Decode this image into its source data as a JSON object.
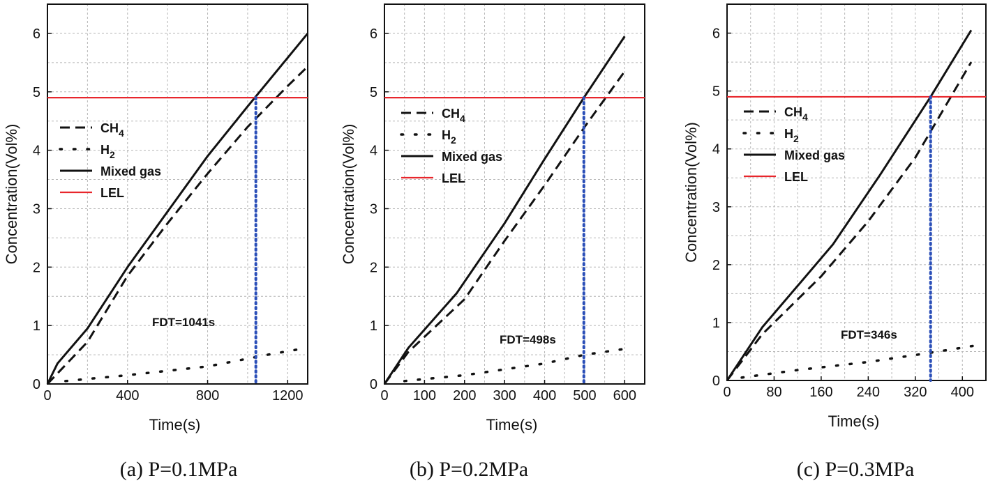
{
  "chart_data": [
    {
      "type": "line",
      "caption": "(a) P=0.1MPa",
      "xlabel": "Time(s)",
      "ylabel": "Concentration(Vol%)",
      "xlim": [
        0,
        1300
      ],
      "ylim": [
        0,
        6.5
      ],
      "xticks": [
        0,
        400,
        800,
        1200
      ],
      "yticks": [
        0,
        1,
        2,
        3,
        4,
        5,
        6
      ],
      "grid": true,
      "legend_position": "left",
      "annotation": "FDT=1041s",
      "fdt": 1041,
      "lel": 4.9,
      "series": [
        {
          "name": "CH",
          "sub": "4",
          "style": "dashed",
          "color": "#111111",
          "x": [
            0,
            200,
            400,
            600,
            800,
            1000,
            1200,
            1290
          ],
          "y": [
            0,
            0.72,
            1.85,
            2.75,
            3.6,
            4.4,
            5.1,
            5.4
          ]
        },
        {
          "name": "H",
          "sub": "2",
          "style": "dotted",
          "color": "#111111",
          "x": [
            90,
            400,
            800,
            1100,
            1300
          ],
          "y": [
            0.05,
            0.15,
            0.3,
            0.5,
            0.62
          ]
        },
        {
          "name": "Mixed gas",
          "style": "solid",
          "color": "#111111",
          "x": [
            0,
            50,
            200,
            400,
            600,
            800,
            1000,
            1300
          ],
          "y": [
            0,
            0.35,
            0.95,
            2.0,
            2.95,
            3.9,
            4.75,
            6.0
          ]
        },
        {
          "name": "LEL",
          "style": "solid",
          "color": "#e8262c",
          "x": [
            0,
            1300
          ],
          "y": [
            4.9,
            4.9
          ]
        }
      ]
    },
    {
      "type": "line",
      "caption": "(b) P=0.2MPa",
      "xlabel": "Time(s)",
      "ylabel": "Concentration(Vol%)",
      "xlim": [
        0,
        650
      ],
      "ylim": [
        0,
        6.5
      ],
      "xticks": [
        0,
        100,
        200,
        300,
        400,
        500,
        600
      ],
      "yticks": [
        0,
        1,
        2,
        3,
        4,
        5,
        6
      ],
      "grid": true,
      "legend_position": "top-left",
      "annotation": "FDT=498s",
      "fdt": 498,
      "lel": 4.9,
      "series": [
        {
          "name": "CH",
          "sub": "4",
          "style": "dashed",
          "color": "#111111",
          "x": [
            0,
            60,
            200,
            300,
            400,
            500,
            600
          ],
          "y": [
            0,
            0.55,
            1.45,
            2.45,
            3.4,
            4.4,
            5.35
          ]
        },
        {
          "name": "H",
          "sub": "2",
          "style": "dotted",
          "color": "#111111",
          "x": [
            50,
            200,
            400,
            500,
            600
          ],
          "y": [
            0.05,
            0.15,
            0.35,
            0.5,
            0.6
          ]
        },
        {
          "name": "Mixed gas",
          "style": "solid",
          "color": "#111111",
          "x": [
            0,
            60,
            180,
            300,
            400,
            500,
            600
          ],
          "y": [
            0,
            0.62,
            1.55,
            2.75,
            3.85,
            4.92,
            5.95
          ]
        },
        {
          "name": "LEL",
          "style": "solid",
          "color": "#e8262c",
          "x": [
            0,
            650
          ],
          "y": [
            4.9,
            4.9
          ]
        }
      ]
    },
    {
      "type": "line",
      "caption": "(c) P=0.3MPa",
      "xlabel": "Time(s)",
      "ylabel": "Concentration(Vol%)",
      "xlim": [
        0,
        440
      ],
      "ylim": [
        0,
        6.5
      ],
      "xticks": [
        0,
        80,
        160,
        240,
        320,
        400
      ],
      "yticks": [
        0,
        1,
        2,
        3,
        4,
        5,
        6
      ],
      "grid": true,
      "legend_position": "top-left",
      "annotation": "FDT=346s",
      "fdt": 346,
      "lel": 4.9,
      "series": [
        {
          "name": "CH",
          "sub": "4",
          "style": "dashed",
          "color": "#111111",
          "x": [
            0,
            60,
            160,
            240,
            320,
            415
          ],
          "y": [
            0,
            0.8,
            1.8,
            2.75,
            3.85,
            5.5
          ]
        },
        {
          "name": "H",
          "sub": "2",
          "style": "dotted",
          "color": "#111111",
          "x": [
            25,
            120,
            240,
            340,
            420
          ],
          "y": [
            0.05,
            0.18,
            0.32,
            0.47,
            0.6
          ]
        },
        {
          "name": "Mixed gas",
          "style": "solid",
          "color": "#111111",
          "x": [
            0,
            60,
            180,
            260,
            346,
            415
          ],
          "y": [
            0,
            0.92,
            2.35,
            3.55,
            4.9,
            6.05
          ]
        },
        {
          "name": "LEL",
          "style": "solid",
          "color": "#e8262c",
          "x": [
            0,
            440
          ],
          "y": [
            4.9,
            4.9
          ]
        }
      ]
    }
  ]
}
